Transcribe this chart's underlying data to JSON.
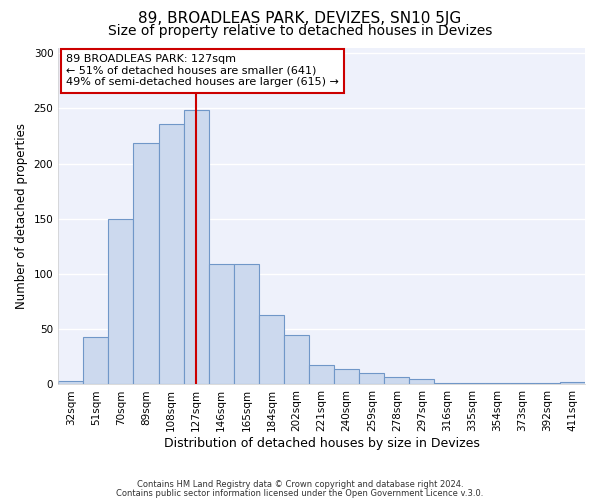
{
  "title": "89, BROADLEAS PARK, DEVIZES, SN10 5JG",
  "subtitle": "Size of property relative to detached houses in Devizes",
  "xlabel": "Distribution of detached houses by size in Devizes",
  "ylabel": "Number of detached properties",
  "bar_labels": [
    "32sqm",
    "51sqm",
    "70sqm",
    "89sqm",
    "108sqm",
    "127sqm",
    "146sqm",
    "165sqm",
    "184sqm",
    "202sqm",
    "221sqm",
    "240sqm",
    "259sqm",
    "278sqm",
    "297sqm",
    "316sqm",
    "335sqm",
    "354sqm",
    "373sqm",
    "392sqm",
    "411sqm"
  ],
  "bar_values": [
    3,
    43,
    150,
    219,
    236,
    248,
    109,
    109,
    63,
    45,
    18,
    14,
    10,
    7,
    5,
    1,
    1,
    1,
    1,
    1,
    2
  ],
  "bar_color": "#ccd9ee",
  "bar_edge_color": "#7097c8",
  "vline_x": 5,
  "vline_color": "#cc0000",
  "annotation_title": "89 BROADLEAS PARK: 127sqm",
  "annotation_line1": "← 51% of detached houses are smaller (641)",
  "annotation_line2": "49% of semi-detached houses are larger (615) →",
  "annotation_box_color": "#ffffff",
  "annotation_box_edge": "#cc0000",
  "ylim": [
    0,
    305
  ],
  "yticks": [
    0,
    50,
    100,
    150,
    200,
    250,
    300
  ],
  "footer1": "Contains HM Land Registry data © Crown copyright and database right 2024.",
  "footer2": "Contains public sector information licensed under the Open Government Licence v.3.0.",
  "background_color": "#ffffff",
  "plot_bg_color": "#eef1fb",
  "grid_color": "#ffffff",
  "title_fontsize": 11,
  "subtitle_fontsize": 10,
  "tick_fontsize": 7.5,
  "ylabel_fontsize": 8.5,
  "xlabel_fontsize": 9,
  "annotation_fontsize": 8
}
